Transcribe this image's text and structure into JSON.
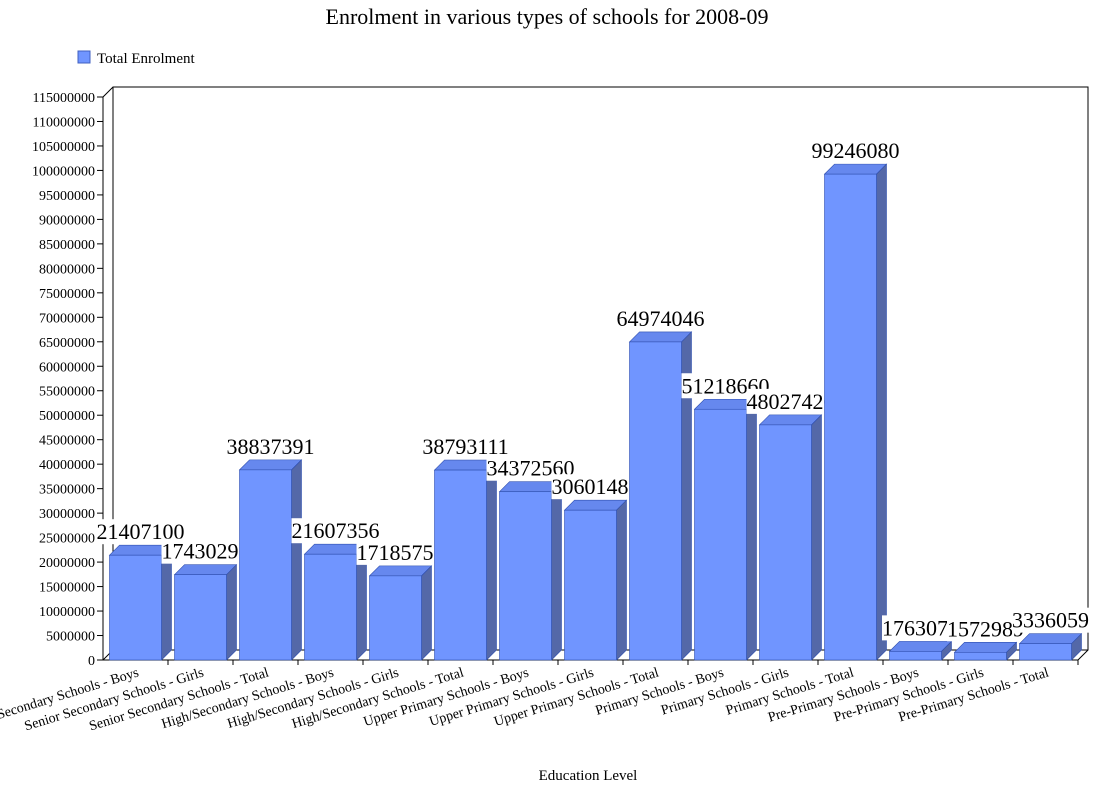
{
  "chart_data": {
    "type": "bar3d",
    "title": "Enrolment in various types of schools for 2008-09",
    "x_label": "Education Level",
    "categories": [
      "Senior Secondary Schools - Boys",
      "Senior Secondary Schools - Girls",
      "Senior Secondary Schools - Total",
      "High/Secondary Schools - Boys",
      "High/Secondary Schools - Girls",
      "High/Secondary Schools - Total",
      "Upper Primary Schools - Boys",
      "Upper Primary Schools - Girls",
      "Upper Primary Schools - Total",
      "Primary Schools - Boys",
      "Primary Schools - Girls",
      "Primary Schools - Total",
      "Pre-Primary Schools - Boys",
      "Pre-Primary Schools - Girls",
      "Pre-Primary Schools - Total"
    ],
    "series": [
      {
        "name": "Total Enrolment",
        "color": "#7095ff",
        "values": [
          21407100,
          17430291,
          38837391,
          21607356,
          17185755,
          38793111,
          34372560,
          30601486,
          64974046,
          51218660,
          48027420,
          99246080,
          1763070,
          1572989,
          3336059
        ]
      }
    ],
    "ylim": [
      0,
      115000000
    ],
    "yticks": [
      0,
      5000000,
      10000000,
      15000000,
      20000000,
      25000000,
      30000000,
      35000000,
      40000000,
      45000000,
      50000000,
      55000000,
      60000000,
      65000000,
      70000000,
      75000000,
      80000000,
      85000000,
      90000000,
      95000000,
      100000000,
      105000000,
      110000000,
      115000000
    ],
    "legend": "top-left"
  }
}
